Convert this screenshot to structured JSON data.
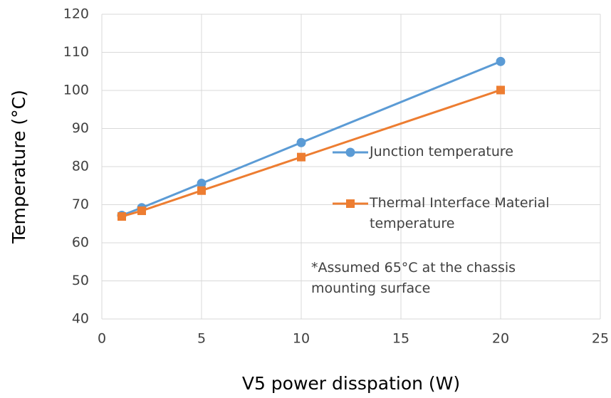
{
  "chart_data": {
    "type": "line",
    "x_label": "V5 power disspation (W)",
    "y_label": "Temperature (°C)",
    "annotation": "*Assumed 65°C at the chassis mounting surface",
    "x": [
      1,
      2,
      5,
      10,
      20
    ],
    "series": [
      {
        "name": "Junction temperature",
        "color": "#5b9bd5",
        "marker": "circle",
        "values": [
          67.2,
          69.2,
          75.6,
          86.3,
          107.6
        ]
      },
      {
        "name": "Thermal Interface Material temperature",
        "color": "#ed7d31",
        "marker": "square",
        "values": [
          66.9,
          68.4,
          73.7,
          82.5,
          100.1
        ]
      }
    ],
    "xlim": [
      0,
      25
    ],
    "xticks": [
      0,
      5,
      10,
      15,
      20,
      25
    ],
    "ylim": [
      40,
      120
    ],
    "yticks": [
      40,
      50,
      60,
      70,
      80,
      90,
      100,
      110,
      120
    ],
    "grid": true
  }
}
